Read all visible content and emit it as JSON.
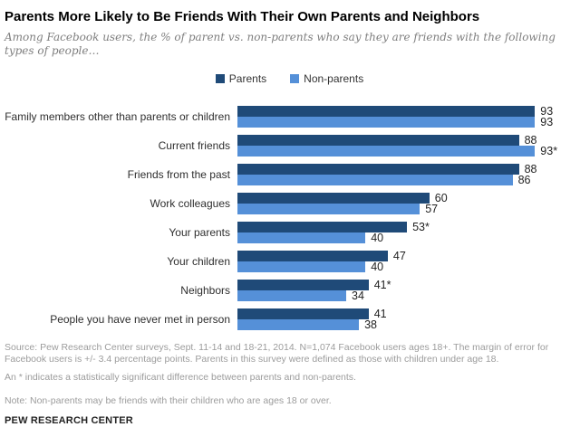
{
  "title": "Parents More Likely to Be Friends With Their Own Parents and Neighbors",
  "subtitle": "Among Facebook users, the % of parent vs. non-parents who say they are friends with the following types of people…",
  "legend": {
    "items": [
      {
        "label": "Parents",
        "color": "#1F4A78"
      },
      {
        "label": "Non-parents",
        "color": "#5590D8"
      }
    ]
  },
  "chart_data": {
    "type": "bar",
    "orientation": "horizontal",
    "title": "Parents More Likely to Be Friends With Their Own Parents and Neighbors",
    "categories": [
      "Family members other than parents or children",
      "Current friends",
      "Friends from the past",
      "Work colleagues",
      "Your parents",
      "Your children",
      "Neighbors",
      "People you have never met in person"
    ],
    "series": [
      {
        "name": "Parents",
        "color": "#1F4A78",
        "values": [
          93,
          88,
          88,
          60,
          53,
          47,
          41,
          41
        ],
        "labels": [
          "93",
          "88",
          "88",
          "60",
          "53*",
          "47",
          "41*",
          "41"
        ]
      },
      {
        "name": "Non-parents",
        "color": "#5590D8",
        "values": [
          93,
          93,
          86,
          57,
          40,
          40,
          34,
          38
        ],
        "labels": [
          "93",
          "93*",
          "86",
          "57",
          "40",
          "40",
          "34",
          "38"
        ]
      }
    ],
    "xlim": [
      0,
      100
    ],
    "value_labels": true,
    "grid": false,
    "axes_hidden": true,
    "legend_position": "top-center"
  },
  "footer": {
    "source": "Source: Pew Research Center surveys, Sept. 11-14 and 18-21, 2014. N=1,074 Facebook users ages 18+. The margin of error for Facebook users is +/- 3.4 percentage points. Parents in this survey were defined as those with children under age 18.",
    "significance": "An * indicates a statistically significant difference between parents and non-parents.",
    "note": "Note: Non-parents may be friends with their children who are ages 18 or over.",
    "brand": "PEW RESEARCH CENTER"
  }
}
